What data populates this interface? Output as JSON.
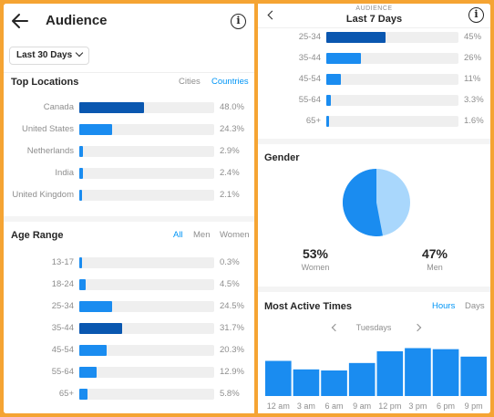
{
  "left": {
    "title": "Audience",
    "range_button": "Last 30 Days",
    "locations": {
      "title": "Top Locations",
      "toggles": [
        "Cities",
        "Countries"
      ],
      "active_toggle": "Countries",
      "rows": [
        {
          "label": "Canada",
          "value": 48.0,
          "text": "48.0%"
        },
        {
          "label": "United States",
          "value": 24.3,
          "text": "24.3%"
        },
        {
          "label": "Netherlands",
          "value": 2.9,
          "text": "2.9%"
        },
        {
          "label": "India",
          "value": 2.4,
          "text": "2.4%"
        },
        {
          "label": "United Kingdom",
          "value": 2.1,
          "text": "2.1%"
        }
      ]
    },
    "age": {
      "title": "Age Range",
      "toggles": [
        "All",
        "Men",
        "Women"
      ],
      "active_toggle": "All",
      "rows": [
        {
          "label": "13-17",
          "value": 0.3,
          "text": "0.3%"
        },
        {
          "label": "18-24",
          "value": 4.5,
          "text": "4.5%"
        },
        {
          "label": "25-34",
          "value": 24.5,
          "text": "24.5%"
        },
        {
          "label": "35-44",
          "value": 31.7,
          "text": "31.7%"
        },
        {
          "label": "45-54",
          "value": 20.3,
          "text": "20.3%"
        },
        {
          "label": "55-64",
          "value": 12.9,
          "text": "12.9%"
        },
        {
          "label": "65+",
          "value": 5.8,
          "text": "5.8%"
        }
      ]
    }
  },
  "right": {
    "subtitle": "AUDIENCE",
    "title": "Last 7 Days",
    "age_rows": [
      {
        "label": "25-34",
        "value": 45,
        "text": "45%"
      },
      {
        "label": "35-44",
        "value": 26,
        "text": "26%"
      },
      {
        "label": "45-54",
        "value": 11,
        "text": "11%"
      },
      {
        "label": "55-64",
        "value": 3.3,
        "text": "3.3%"
      },
      {
        "label": "65+",
        "value": 1.6,
        "text": "1.6%"
      }
    ],
    "gender": {
      "title": "Gender",
      "women_value": "53%",
      "women_label": "Women",
      "men_value": "47%",
      "men_label": "Men"
    },
    "active_times": {
      "title": "Most Active Times",
      "toggles": [
        "Hours",
        "Days"
      ],
      "active_toggle": "Hours",
      "day": "Tuesdays"
    }
  },
  "colors": {
    "dark_blue": "#0A57B0",
    "blue": "#1A8CF0",
    "light_blue": "#A9D7FC",
    "link_blue": "#0095F6",
    "track": "#EFEFEF",
    "frame": "#F5A433"
  },
  "chart_data": {
    "type": "bar",
    "title": "Most Active Times",
    "categories": [
      "12 am",
      "3 am",
      "6 am",
      "9 am",
      "12 pm",
      "3 pm",
      "6 pm",
      "9 pm"
    ],
    "values": [
      33,
      25,
      24,
      31,
      42,
      45,
      44,
      37
    ],
    "xlabel": "",
    "ylabel": "",
    "ylim": [
      0,
      60
    ],
    "grid": false
  }
}
